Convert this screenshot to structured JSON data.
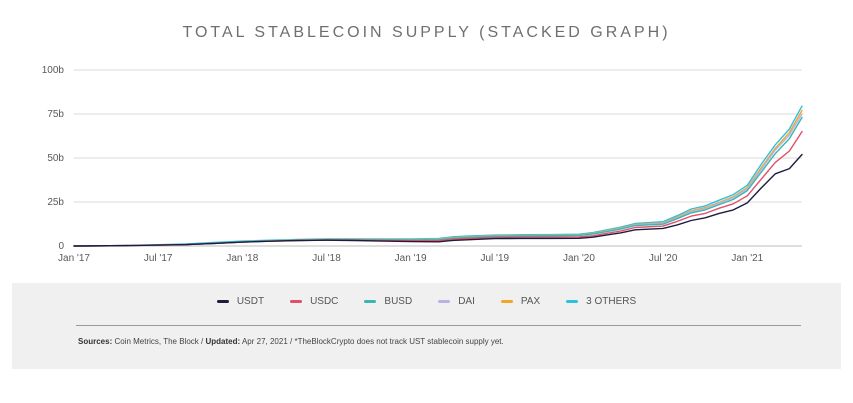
{
  "chart_data": {
    "type": "line",
    "title": "TOTAL STABLECOIN SUPPLY (STACKED GRAPH)",
    "ylabel": "",
    "xlabel": "",
    "ylim": [
      0,
      100
    ],
    "y_ticks": [
      "0",
      "25b",
      "50b",
      "75b",
      "100b"
    ],
    "y_tick_values": [
      0,
      25,
      50,
      75,
      100
    ],
    "x_ticks": [
      "Jan '17",
      "Jul '17",
      "Jan '18",
      "Jul '18",
      "Jan '19",
      "Jul '19",
      "Jan '20",
      "Jul '20",
      "Jan '21"
    ],
    "x_tick_values": [
      0,
      6,
      12,
      18,
      24,
      30,
      36,
      42,
      48
    ],
    "xlim": [
      0,
      51.9
    ],
    "grid": true,
    "x": [
      0,
      4,
      8,
      10,
      12,
      14,
      16,
      18,
      20,
      22,
      24,
      26,
      27,
      28,
      30,
      32,
      34,
      36,
      37,
      38,
      39,
      40,
      42,
      43,
      44,
      45,
      46,
      47,
      48,
      49,
      50,
      51,
      51.9
    ],
    "series": [
      {
        "name": "USDT",
        "color": "#1f1d3d",
        "values": [
          0,
          0.2,
          0.8,
          1.5,
          2.2,
          2.7,
          3.1,
          3.3,
          3.1,
          2.8,
          2.5,
          2.4,
          3.2,
          3.5,
          4.2,
          4.3,
          4.3,
          4.4,
          5.0,
          6.3,
          7.5,
          9.2,
          10.0,
          12.0,
          14.5,
          16.0,
          18.5,
          20.5,
          24.5,
          33.0,
          41.0,
          44.0,
          52.0
        ]
      },
      {
        "name": "USDC",
        "color": "#e0506a",
        "values": [
          0,
          0.2,
          0.8,
          1.5,
          2.2,
          2.7,
          3.1,
          3.4,
          3.3,
          3.1,
          3.0,
          3.0,
          3.8,
          4.2,
          4.9,
          5.0,
          5.0,
          5.1,
          5.8,
          7.2,
          8.6,
          10.5,
          11.3,
          14.0,
          17.0,
          18.5,
          21.5,
          24.0,
          28.5,
          38.0,
          47.5,
          54.0,
          65.0
        ]
      },
      {
        "name": "BUSD",
        "color": "#3bb7ad",
        "values": [
          0,
          0.2,
          0.8,
          1.5,
          2.2,
          2.8,
          3.2,
          3.6,
          3.6,
          3.5,
          3.4,
          3.6,
          4.4,
          4.8,
          5.5,
          5.7,
          5.8,
          6.0,
          6.8,
          8.2,
          9.7,
          11.6,
          12.4,
          15.5,
          18.8,
          20.5,
          23.5,
          26.5,
          31.5,
          42.0,
          52.5,
          61.0,
          73.0
        ]
      },
      {
        "name": "DAI",
        "color": "#b8b3e2",
        "values": [
          0,
          0.2,
          0.8,
          1.5,
          2.2,
          2.8,
          3.3,
          3.7,
          3.7,
          3.6,
          3.5,
          3.7,
          4.5,
          4.9,
          5.6,
          5.8,
          5.9,
          6.1,
          7.0,
          8.5,
          10.0,
          12.0,
          12.9,
          16.0,
          19.5,
          21.3,
          24.3,
          27.5,
          32.5,
          43.5,
          54.5,
          63.0,
          75.0
        ]
      },
      {
        "name": "PAX",
        "color": "#f0a62a",
        "values": [
          0,
          0.2,
          0.8,
          1.5,
          2.3,
          2.9,
          3.4,
          3.8,
          3.8,
          3.7,
          3.7,
          3.9,
          4.7,
          5.1,
          5.8,
          6.0,
          6.1,
          6.3,
          7.2,
          8.7,
          10.2,
          12.2,
          13.2,
          16.4,
          20.0,
          21.8,
          24.8,
          28.0,
          33.2,
          44.5,
          55.5,
          64.5,
          77.0
        ]
      },
      {
        "name": "3 OTHERS",
        "color": "#2ec0dc",
        "values": [
          0,
          0.3,
          1.2,
          2.0,
          2.8,
          3.3,
          3.7,
          4.1,
          4.1,
          4.0,
          4.0,
          4.3,
          5.2,
          5.6,
          6.2,
          6.4,
          6.5,
          6.7,
          7.6,
          9.2,
          10.8,
          12.8,
          13.8,
          17.2,
          21.0,
          22.8,
          26.0,
          29.2,
          34.5,
          46.5,
          57.5,
          66.5,
          79.5
        ]
      }
    ]
  },
  "legend": {
    "items": [
      {
        "label": "USDT",
        "color": "#1f1d3d"
      },
      {
        "label": "USDC",
        "color": "#e0506a"
      },
      {
        "label": "BUSD",
        "color": "#3bb7ad"
      },
      {
        "label": "DAI",
        "color": "#b8b3e2"
      },
      {
        "label": "PAX",
        "color": "#f0a62a"
      },
      {
        "label": "3 OTHERS",
        "color": "#2ec0dc"
      }
    ]
  },
  "footer": {
    "sources_label": "Sources:",
    "sources_value": "Coin Metrics, The Block",
    "separator": "/",
    "updated_label": "Updated:",
    "updated_value": "Apr 27, 2021",
    "note": "*TheBlockCrypto does not track UST stablecoin supply yet."
  }
}
